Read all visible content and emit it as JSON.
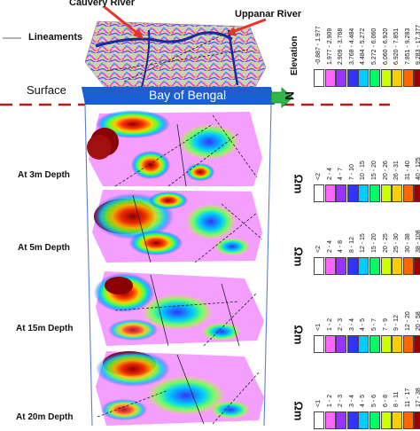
{
  "labels": {
    "cauvery": "Cauvery River",
    "uppanar": "Uppanar River",
    "lineaments": "Lineaments",
    "surface": "Surface",
    "bay": "Bay of Bengal",
    "north": "N",
    "depth3": "At 3m Depth",
    "depth5": "At 5m Depth",
    "depth15": "At 15m Depth",
    "depth20": "At 20m Depth"
  },
  "legends": [
    {
      "unit": "Elevation",
      "vertical": true,
      "ticks": [
        "-0.887 - 1.977",
        "1.977 - 2.909",
        "2.909 - 3.768",
        "3.768 - 4.484",
        "4.484 - 5.272",
        "5.272 - 6.060",
        "6.060 - 6.920",
        "6.920 - 7.851",
        "7.851 - 9.283",
        "9.283 - 17.377"
      ],
      "colors": [
        "#ffffff",
        "#ff66ff",
        "#9933ff",
        "#3333ff",
        "#00ccff",
        "#00ff66",
        "#ccff00",
        "#ffcc00",
        "#ff6600",
        "#990000"
      ]
    },
    {
      "unit": "Ωm",
      "vertical": false,
      "ticks": [
        "<2",
        "2 - 4",
        "4 - 7",
        "7 - 10",
        "10 - 15",
        "15 - 20",
        "20 - 26",
        "26 - 31",
        "31 - 40",
        "40 - 125"
      ],
      "colors": [
        "#ffffff",
        "#ff66ff",
        "#9933ff",
        "#3333ff",
        "#00ccff",
        "#00ff66",
        "#ccff00",
        "#ffcc00",
        "#ff6600",
        "#990000"
      ]
    },
    {
      "unit": "Ωm",
      "vertical": false,
      "ticks": [
        "<2",
        "2 - 4",
        "4 - 8",
        "8 - 12",
        "12 - 15",
        "15 - 20",
        "20 - 25",
        "25 - 30",
        "30 - 38",
        "38 - 108"
      ],
      "colors": [
        "#ffffff",
        "#ff66ff",
        "#9933ff",
        "#3333ff",
        "#00ccff",
        "#00ff66",
        "#ccff00",
        "#ffcc00",
        "#ff6600",
        "#990000"
      ]
    },
    {
      "unit": "Ωm",
      "vertical": false,
      "ticks": [
        "<1",
        "1 - 2",
        "2 - 3",
        "3 - 4",
        "4 - 5",
        "5 - 7",
        "7 - 9",
        "9 - 12",
        "12 - 20",
        "20 - 58"
      ],
      "colors": [
        "#ffffff",
        "#ff66ff",
        "#9933ff",
        "#3333ff",
        "#00ccff",
        "#00ff66",
        "#ccff00",
        "#ffcc00",
        "#ff6600",
        "#990000"
      ]
    },
    {
      "unit": "Ωm",
      "vertical": false,
      "ticks": [
        "<1",
        "1 - 2",
        "2 - 3",
        "3 - 4",
        "4 - 5",
        "5 - 6",
        "6 - 8",
        "8 - 11",
        "11 - 17",
        "17 - 38"
      ],
      "colors": [
        "#ffffff",
        "#ff66ff",
        "#9933ff",
        "#3333ff",
        "#00ccff",
        "#00ff66",
        "#ccff00",
        "#ffcc00",
        "#ff6600",
        "#990000"
      ]
    }
  ],
  "colors": {
    "arrow": "#e8332a",
    "bay_bar": "#1a5fd0",
    "surface_line": "#b51c1c",
    "north_arrow": "#2fb84a",
    "frame_line": "#5a7fd0"
  }
}
